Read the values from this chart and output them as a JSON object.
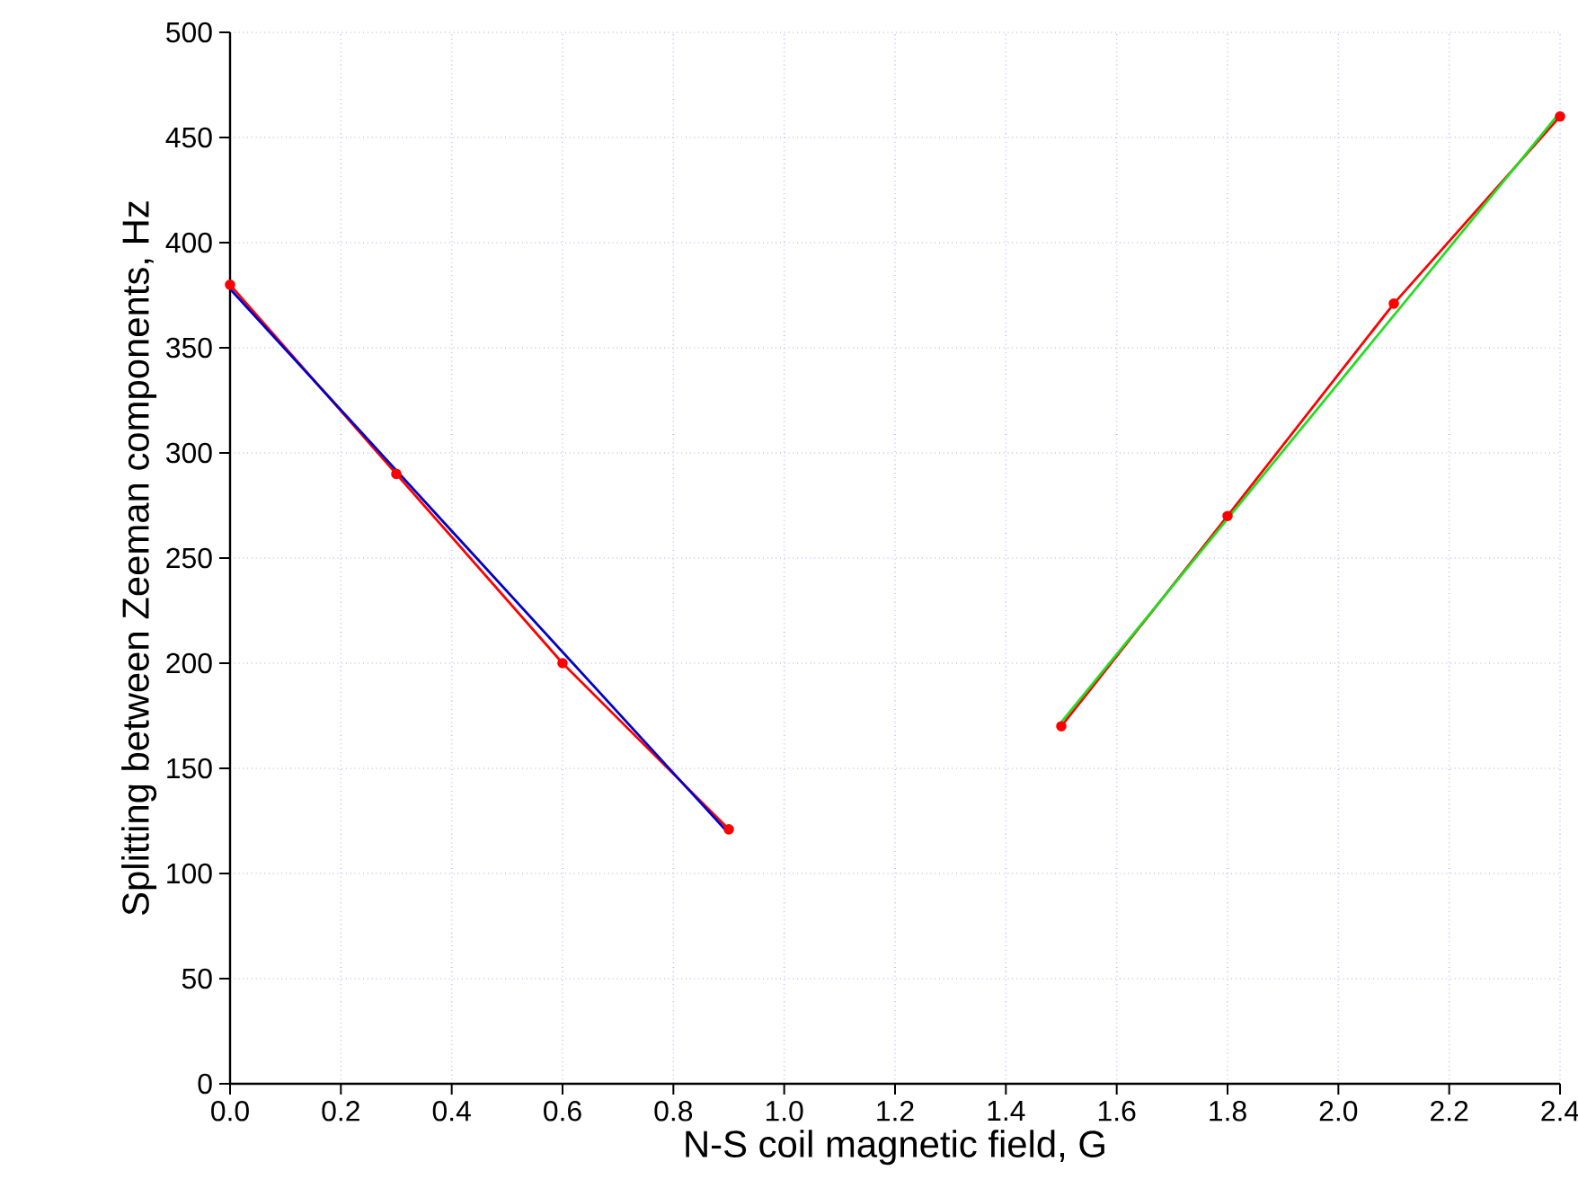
{
  "chart_data": {
    "type": "line",
    "xlabel": "N-S coil magnetic field, G",
    "ylabel": "Splitting between Zeeman components, Hz",
    "xlim": [
      0,
      2.4
    ],
    "ylim": [
      0,
      500
    ],
    "xticks": [
      {
        "value": 0,
        "label": "0.0"
      },
      {
        "value": 0.2,
        "label": "0.2"
      },
      {
        "value": 0.4,
        "label": "0.4"
      },
      {
        "value": 0.6,
        "label": "0.6"
      },
      {
        "value": 0.8,
        "label": "0.8"
      },
      {
        "value": 1.0,
        "label": "1.0"
      },
      {
        "value": 1.2,
        "label": "1.2"
      },
      {
        "value": 1.4,
        "label": "1.4"
      },
      {
        "value": 1.6,
        "label": "1.6"
      },
      {
        "value": 1.8,
        "label": "1.8"
      },
      {
        "value": 2.0,
        "label": "2.0"
      },
      {
        "value": 2.2,
        "label": "2.2"
      },
      {
        "value": 2.4,
        "label": "2.4"
      }
    ],
    "yticks": [
      0,
      50,
      100,
      150,
      200,
      250,
      300,
      350,
      400,
      450,
      500
    ],
    "grid": true,
    "series": [
      {
        "color": "#ff0000",
        "marker": "circle",
        "x": [
          0,
          0.3,
          0.6,
          0.9
        ],
        "values": [
          380,
          290,
          200,
          121
        ]
      },
      {
        "color": "#0000cc",
        "marker": "none",
        "x": [
          0,
          0.9
        ],
        "values": [
          378,
          119
        ]
      },
      {
        "color": "#ff0000",
        "marker": "circle",
        "x": [
          1.5,
          1.8,
          2.1,
          2.4
        ],
        "values": [
          170,
          270,
          371,
          460
        ]
      },
      {
        "color": "#22dd22",
        "marker": "none",
        "x": [
          1.5,
          2.4
        ],
        "values": [
          172,
          462
        ]
      }
    ]
  }
}
